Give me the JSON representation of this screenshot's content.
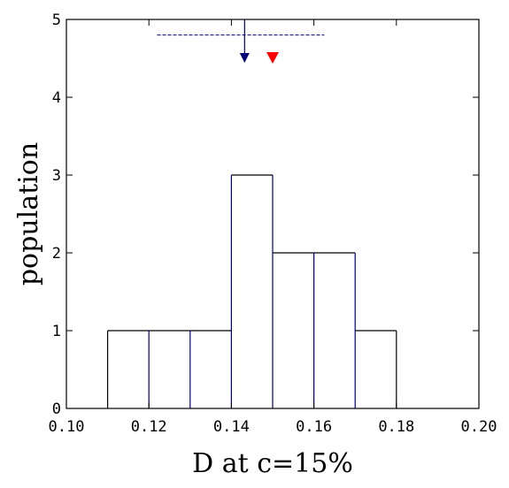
{
  "chart_data": {
    "type": "bar",
    "xlabel": "D at c=15%",
    "ylabel": "population",
    "xlim": [
      0.1,
      0.2
    ],
    "ylim": [
      0,
      5
    ],
    "x_ticks": [
      "0.10",
      "0.12",
      "0.14",
      "0.16",
      "0.18",
      "0.20"
    ],
    "y_ticks": [
      "0",
      "1",
      "2",
      "3",
      "4",
      "5"
    ],
    "bin_width": 0.01,
    "bins": [
      {
        "x0": 0.11,
        "x1": 0.12,
        "count": 1
      },
      {
        "x0": 0.12,
        "x1": 0.13,
        "count": 1
      },
      {
        "x0": 0.13,
        "x1": 0.14,
        "count": 1
      },
      {
        "x0": 0.14,
        "x1": 0.15,
        "count": 3
      },
      {
        "x0": 0.15,
        "x1": 0.16,
        "count": 2
      },
      {
        "x0": 0.16,
        "x1": 0.17,
        "count": 2
      },
      {
        "x0": 0.17,
        "x1": 0.18,
        "count": 1
      }
    ],
    "markers": {
      "mean_line_x": 0.1432,
      "mean_arrow_color": "#00007f",
      "red_marker_x": 0.15,
      "red_marker_color": "#ff0000",
      "dashed_range": {
        "x0": 0.122,
        "x1": 0.1625,
        "y": 4.8,
        "color": "#00007f"
      }
    },
    "grid": false,
    "colors": {
      "bar_edge": "#00007f",
      "bar_outline": "#000000",
      "fill": "#ffffff"
    }
  }
}
